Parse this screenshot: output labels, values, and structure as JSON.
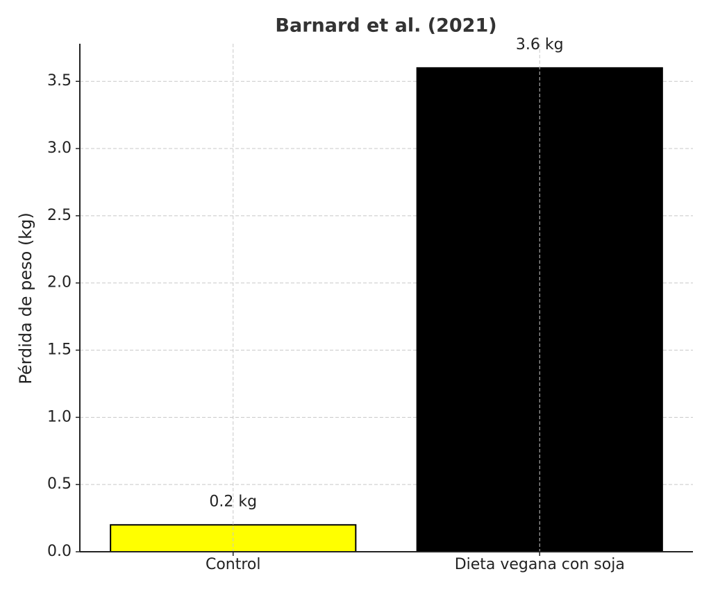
{
  "chart_data": {
    "type": "bar",
    "title": "Barnard et al. (2021)",
    "y_label": "Pérdida de peso (kg)",
    "categories": [
      "Control",
      "Dieta vegana con soja"
    ],
    "values": [
      0.2,
      3.6
    ],
    "value_labels": [
      "0.2 kg",
      "3.6 kg"
    ],
    "colors": [
      "#ffff00",
      "#000000"
    ],
    "edge_color": "#000000",
    "ylim": [
      0,
      3.78
    ],
    "yticks": [
      {
        "value": 0,
        "label": "0.0"
      },
      0.5,
      {
        "value": 1,
        "label": "1.0"
      },
      1.5,
      {
        "value": 2,
        "label": "2.0"
      },
      2.5,
      {
        "value": 3,
        "label": "3.0"
      },
      3.5
    ],
    "grid": true
  }
}
